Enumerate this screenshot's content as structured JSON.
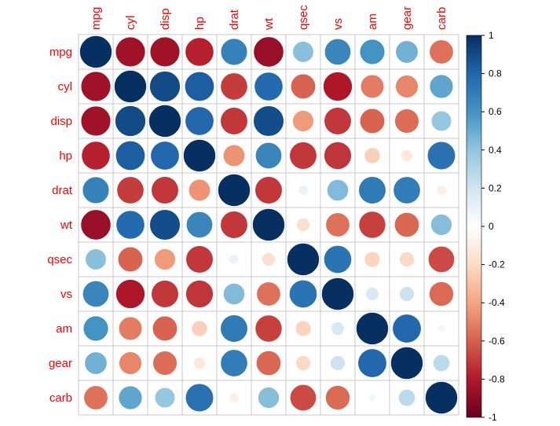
{
  "chart_data": {
    "type": "heatmap",
    "glyph": "circle",
    "variables": [
      "mpg",
      "cyl",
      "disp",
      "hp",
      "drat",
      "wt",
      "qsec",
      "vs",
      "am",
      "gear",
      "carb"
    ],
    "matrix": [
      [
        1.0,
        -0.85,
        -0.85,
        -0.78,
        0.68,
        -0.87,
        0.42,
        0.66,
        0.6,
        0.48,
        -0.55
      ],
      [
        -0.85,
        1.0,
        0.9,
        0.83,
        -0.7,
        0.78,
        -0.59,
        -0.81,
        -0.52,
        -0.49,
        0.53
      ],
      [
        -0.85,
        0.9,
        1.0,
        0.79,
        -0.71,
        0.89,
        -0.43,
        -0.71,
        -0.59,
        -0.56,
        0.39
      ],
      [
        -0.78,
        0.83,
        0.79,
        1.0,
        -0.45,
        0.66,
        -0.71,
        -0.72,
        -0.24,
        -0.13,
        0.75
      ],
      [
        0.68,
        -0.7,
        -0.71,
        -0.45,
        1.0,
        -0.71,
        0.09,
        0.44,
        0.71,
        0.7,
        -0.09
      ],
      [
        -0.87,
        0.78,
        0.89,
        0.66,
        -0.71,
        1.0,
        -0.17,
        -0.55,
        -0.69,
        -0.58,
        0.43
      ],
      [
        0.42,
        -0.59,
        -0.43,
        -0.71,
        0.09,
        -0.17,
        1.0,
        0.74,
        -0.23,
        -0.21,
        -0.66
      ],
      [
        0.66,
        -0.81,
        -0.71,
        -0.72,
        0.44,
        -0.55,
        0.74,
        1.0,
        0.17,
        0.21,
        -0.57
      ],
      [
        0.6,
        -0.52,
        -0.59,
        -0.24,
        0.71,
        -0.69,
        -0.23,
        0.17,
        1.0,
        0.79,
        0.06
      ],
      [
        0.48,
        -0.49,
        -0.56,
        -0.13,
        0.7,
        -0.58,
        -0.21,
        0.21,
        0.79,
        1.0,
        0.27
      ],
      [
        -0.55,
        0.53,
        0.39,
        0.75,
        -0.09,
        0.43,
        -0.66,
        -0.57,
        0.06,
        0.27,
        1.0
      ]
    ],
    "colorbar": {
      "range": [
        -1,
        1
      ],
      "ticks": [
        "1",
        "0.8",
        "0.6",
        "0.4",
        "0.2",
        "0",
        "-0.2",
        "-0.4",
        "-0.6",
        "-0.8",
        "-1"
      ],
      "colors": [
        "#67001F",
        "#B2182B",
        "#D6604D",
        "#F4A582",
        "#FDDBC7",
        "#FFFFFF",
        "#D1E5F0",
        "#92C5DE",
        "#4393C3",
        "#2166AC",
        "#053061"
      ]
    },
    "grid": true,
    "label_color": "#ff0000"
  }
}
